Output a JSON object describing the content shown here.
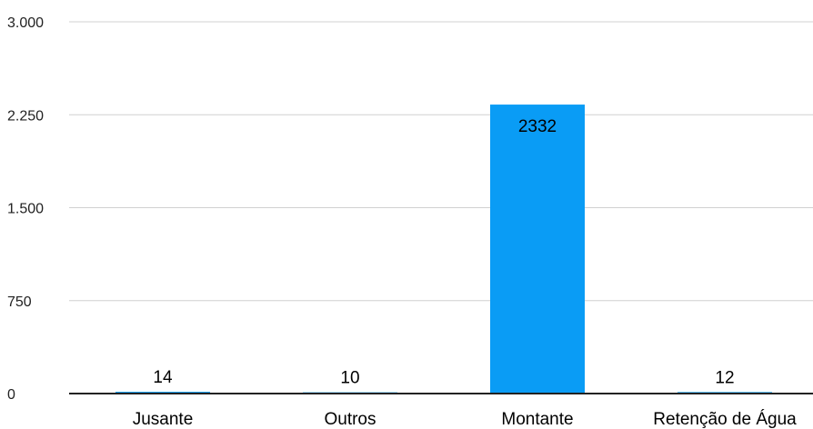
{
  "chart_data": {
    "type": "bar",
    "categories": [
      "Jusante",
      "Outros",
      "Montante",
      "Retenção de Água"
    ],
    "values": [
      14,
      10,
      2332,
      12
    ],
    "value_labels": [
      "14",
      "10",
      "2332",
      "12"
    ],
    "title": "",
    "xlabel": "",
    "ylabel": "",
    "ylim": [
      0,
      3000
    ],
    "yticks": [
      0,
      750,
      1500,
      2250,
      3000
    ],
    "ytick_labels": [
      "0",
      "750",
      "1.500",
      "2.250",
      "3.000"
    ],
    "grid": true,
    "legend": "none",
    "bar_color": "#0a9cf5"
  }
}
